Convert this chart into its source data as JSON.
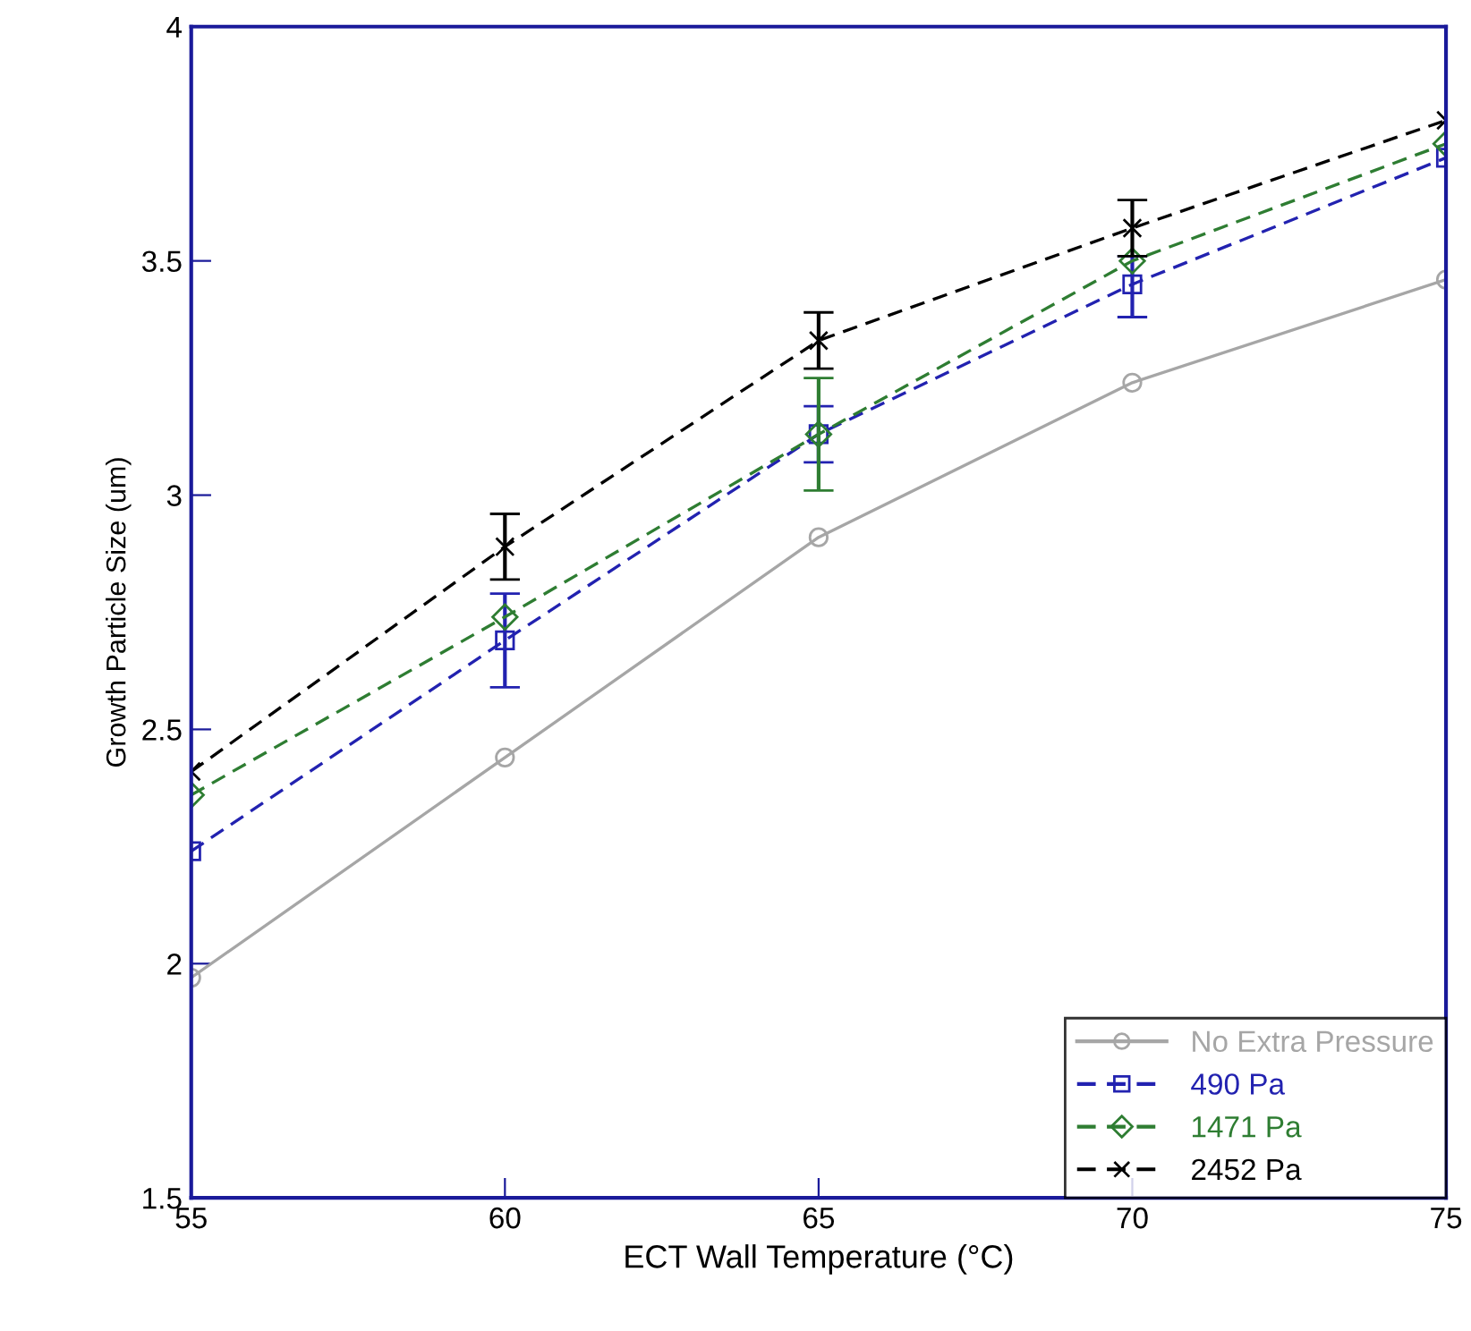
{
  "chart_data": {
    "type": "line",
    "xlabel": "ECT Wall Temperature (°C)",
    "ylabel": "Growth Particle Size (um)",
    "x": [
      55,
      60,
      65,
      70,
      75
    ],
    "series": [
      {
        "name": "No Extra Pressure",
        "color": "#a6a6a6",
        "marker": "circle",
        "line_style": "solid",
        "values": [
          1.97,
          2.44,
          2.91,
          3.24,
          3.46
        ]
      },
      {
        "name": "490 Pa",
        "color": "#2222b0",
        "marker": "square",
        "line_style": "dashed",
        "values": [
          2.24,
          2.69,
          3.13,
          3.45,
          3.72
        ],
        "errors": [
          null,
          [
            2.59,
            2.79
          ],
          [
            3.07,
            3.19
          ],
          [
            3.38,
            3.51
          ],
          null
        ]
      },
      {
        "name": "1471 Pa",
        "color": "#2e7d32",
        "marker": "diamond",
        "line_style": "dashed",
        "values": [
          2.36,
          2.74,
          3.13,
          3.5,
          3.75
        ],
        "errors": [
          null,
          null,
          [
            3.01,
            3.25
          ],
          null,
          null
        ]
      },
      {
        "name": "2452 Pa",
        "color": "#000000",
        "marker": "cross",
        "line_style": "dashed",
        "values": [
          2.41,
          2.89,
          3.33,
          3.57,
          3.8
        ],
        "errors": [
          null,
          [
            2.82,
            2.96
          ],
          [
            3.27,
            3.39
          ],
          [
            3.51,
            3.63
          ],
          null
        ]
      }
    ],
    "xlim": [
      55,
      75
    ],
    "xticks": [
      55,
      60,
      65,
      70,
      75
    ],
    "ylim": [
      1.5,
      4
    ],
    "yticks": [
      1.5,
      2,
      2.5,
      3,
      3.5,
      4
    ],
    "grid": false,
    "legend": "bottom right"
  }
}
